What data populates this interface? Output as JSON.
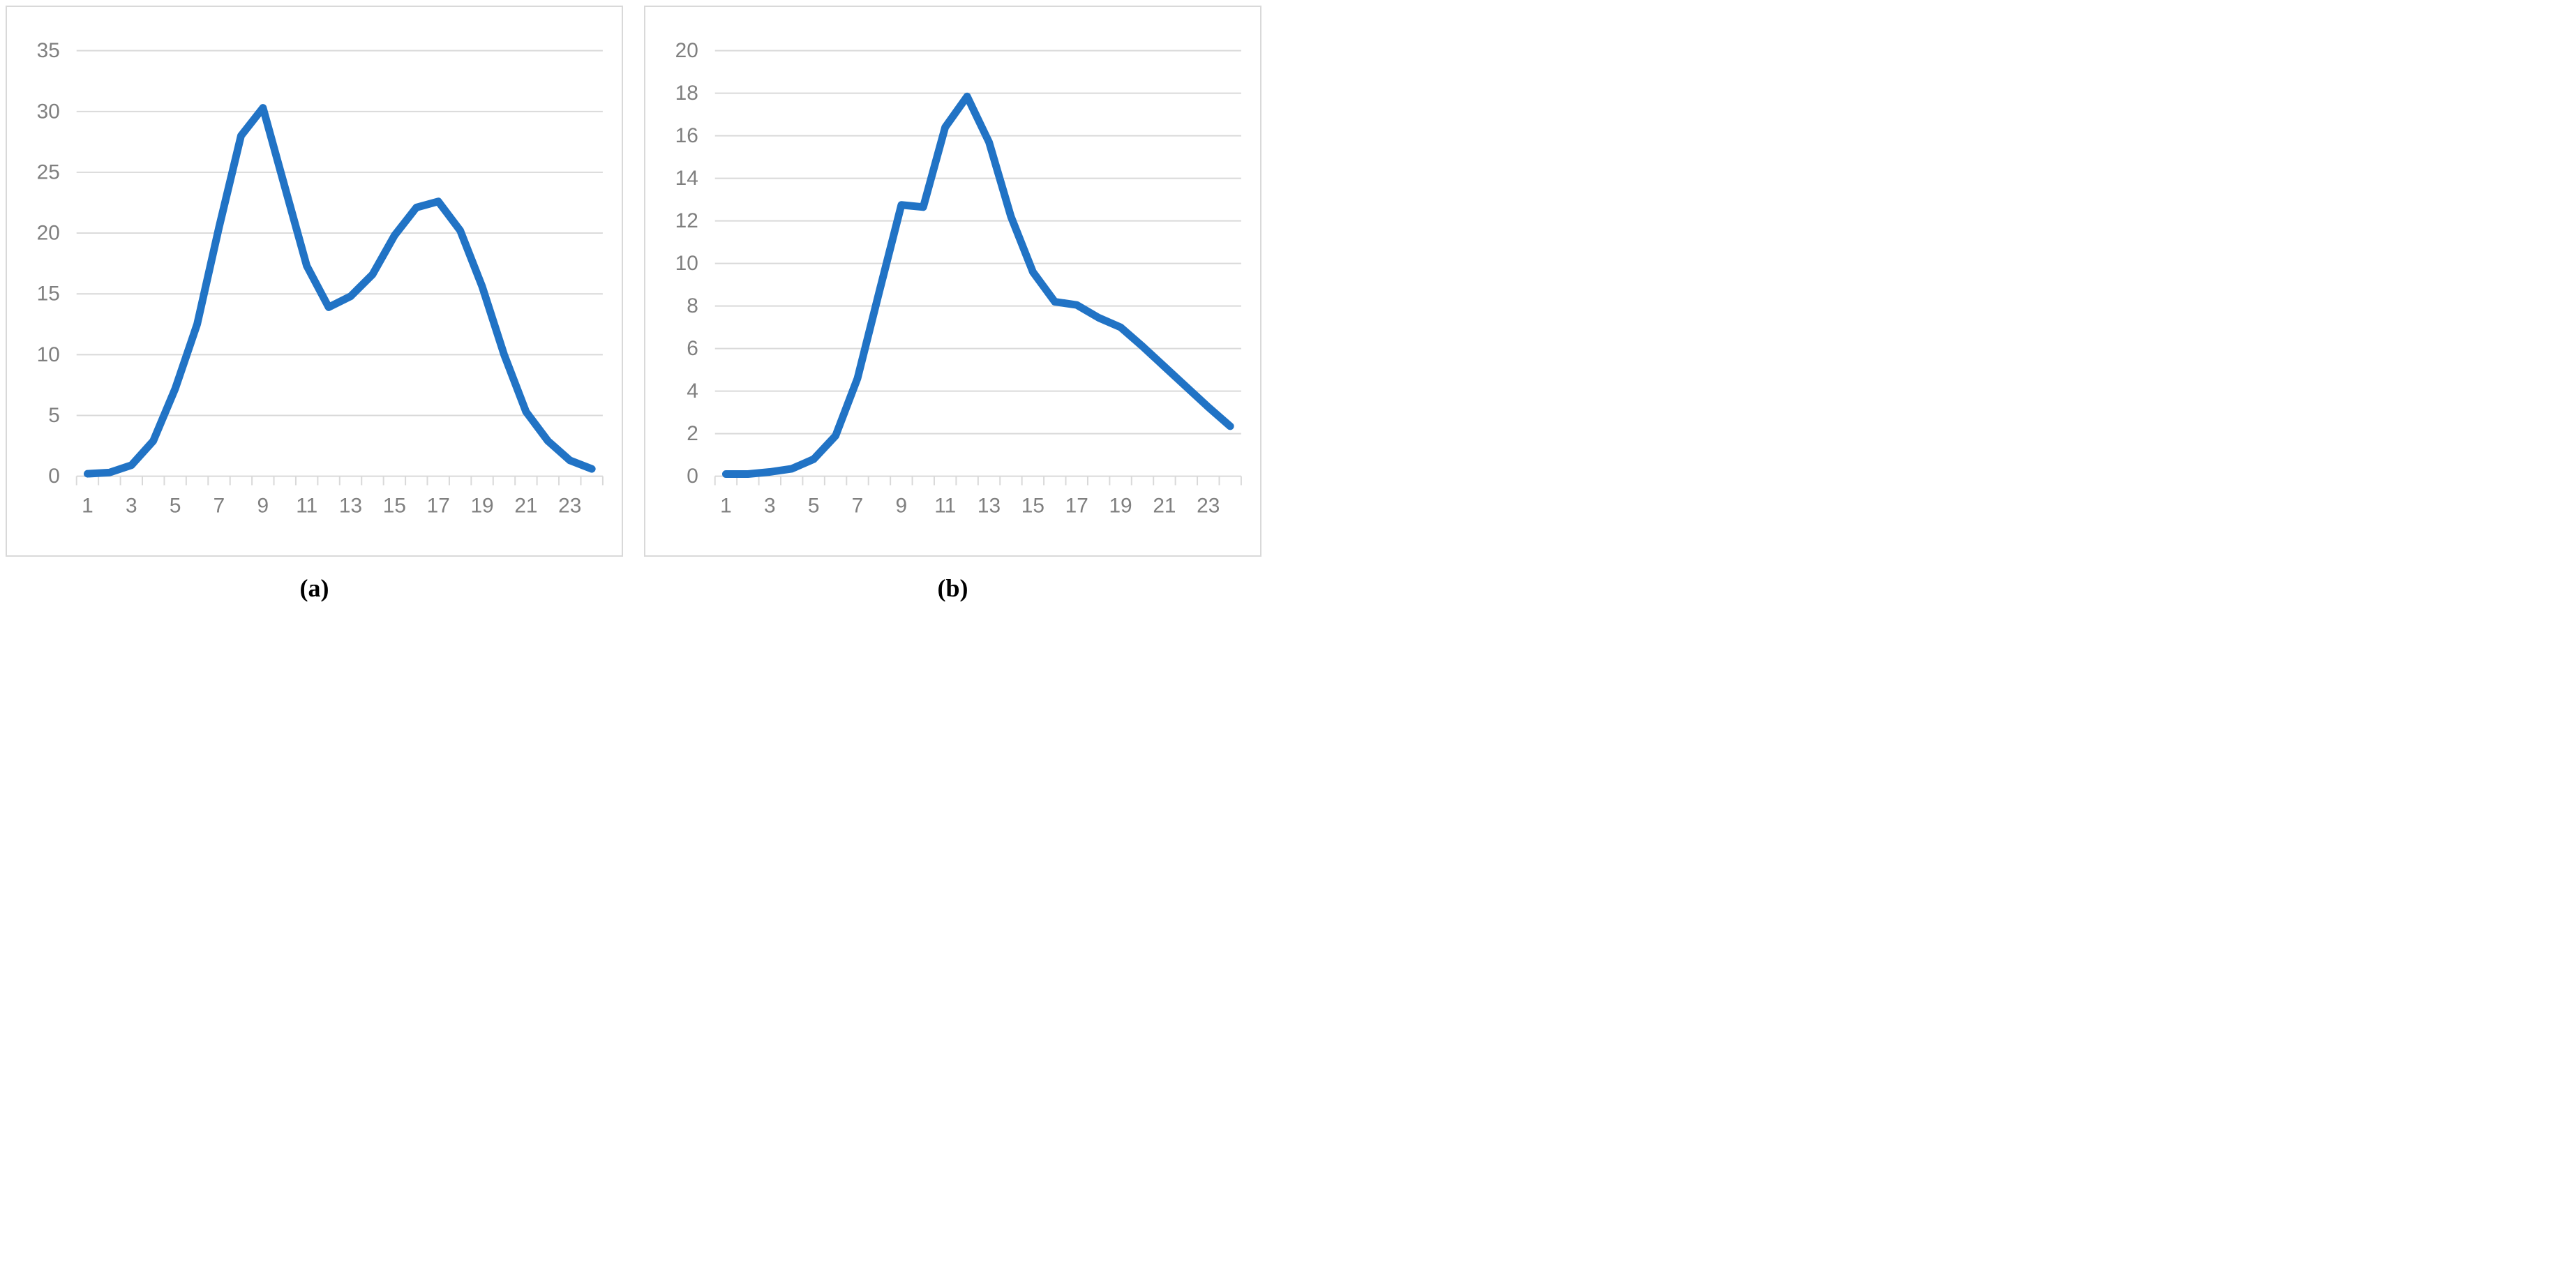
{
  "page": {
    "background": "#ffffff"
  },
  "style": {
    "line_color": "#2173C5",
    "grid_color": "#D9D9D9",
    "axis_color": "#D9D9D9",
    "label_color": "#7F7F7F",
    "border_color": "#D9D9D9",
    "caption_color": "#000000"
  },
  "captions": {
    "a": "(a)",
    "b": "(b)"
  },
  "chart_data": [
    {
      "type": "line",
      "panel": "a",
      "caption": "(a)",
      "title": "",
      "xlabel": "",
      "ylabel": "",
      "grid": true,
      "legend_position": "none",
      "x": [
        1,
        2,
        3,
        4,
        5,
        6,
        7,
        8,
        9,
        10,
        11,
        12,
        13,
        14,
        15,
        16,
        17,
        18,
        19,
        20,
        21,
        22,
        23,
        24
      ],
      "x_labeled_ticks": [
        1,
        3,
        5,
        7,
        9,
        11,
        13,
        15,
        17,
        19,
        21,
        23
      ],
      "values": [
        0.2,
        0.3,
        0.9,
        2.9,
        7.2,
        12.5,
        20.5,
        28.0,
        30.3,
        23.8,
        17.3,
        13.9,
        14.8,
        16.6,
        19.8,
        22.1,
        22.6,
        20.2,
        15.6,
        10.0,
        5.3,
        2.9,
        1.3,
        0.6
      ],
      "ylim": [
        0,
        35
      ],
      "y_ticks": [
        0,
        5,
        10,
        15,
        20,
        25,
        30,
        35
      ]
    },
    {
      "type": "line",
      "panel": "b",
      "caption": "(b)",
      "title": "",
      "xlabel": "",
      "ylabel": "",
      "grid": true,
      "legend_position": "none",
      "x": [
        1,
        2,
        3,
        4,
        5,
        6,
        7,
        8,
        9,
        10,
        11,
        12,
        13,
        14,
        15,
        16,
        17,
        18,
        19,
        20,
        21,
        22,
        23,
        24
      ],
      "x_labeled_ticks": [
        1,
        3,
        5,
        7,
        9,
        11,
        13,
        15,
        17,
        19,
        21,
        23
      ],
      "values": [
        0.1,
        0.1,
        0.2,
        0.35,
        0.8,
        1.9,
        4.6,
        8.7,
        12.75,
        12.65,
        16.4,
        17.85,
        15.7,
        12.2,
        9.6,
        8.2,
        8.05,
        7.45,
        7.0,
        6.1,
        5.15,
        4.2,
        3.25,
        2.35
      ],
      "ylim": [
        0,
        20
      ],
      "y_ticks": [
        0,
        2,
        4,
        6,
        8,
        10,
        12,
        14,
        16,
        18,
        20
      ]
    }
  ]
}
